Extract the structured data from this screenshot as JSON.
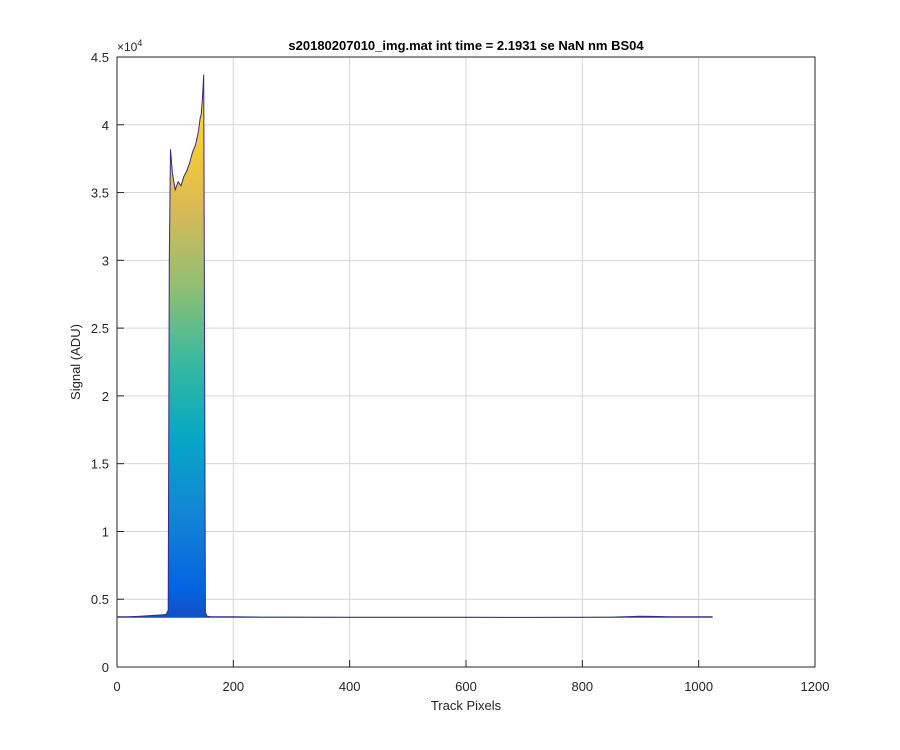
{
  "chart_data": {
    "type": "area",
    "title": "s20180207010_img.mat int time = 2.1931 se  NaN nm BS04",
    "xlabel": "Track Pixels",
    "ylabel": "Signal (ADU)",
    "xlim": [
      0,
      1200
    ],
    "ylim": [
      0,
      45000
    ],
    "exponent_label": "×10",
    "exponent_power": "4",
    "x_ticks": [
      0,
      200,
      400,
      600,
      800,
      1000,
      1200
    ],
    "x_tick_labels": [
      "0",
      "200",
      "400",
      "600",
      "800",
      "1000",
      "1200"
    ],
    "y_ticks": [
      0,
      5000,
      10000,
      15000,
      20000,
      25000,
      30000,
      35000,
      40000,
      45000
    ],
    "y_tick_labels": [
      "0",
      "0.5",
      "1",
      "1.5",
      "2",
      "2.5",
      "3",
      "3.5",
      "4",
      "4.5"
    ],
    "grid": true,
    "colormap": [
      "#352a87",
      "#0363e1",
      "#1485d4",
      "#06a7c6",
      "#38b99e",
      "#92bf73",
      "#d9ba56",
      "#fcce2e",
      "#f9fb0e"
    ],
    "series": [
      {
        "color": "#352a87",
        "x": [
          1,
          20,
          40,
          60,
          80,
          85,
          88,
          90,
          92,
          95,
          100,
          105,
          110,
          115,
          120,
          125,
          130,
          135,
          140,
          143,
          145,
          147,
          149,
          150,
          152,
          155,
          160,
          180,
          200,
          250,
          300,
          400,
          500,
          600,
          700,
          800,
          850,
          880,
          900,
          920,
          950,
          1000,
          1024
        ],
        "y": [
          3700,
          3700,
          3750,
          3800,
          3850,
          3900,
          4200,
          30000,
          38200,
          36500,
          35200,
          35800,
          35500,
          36200,
          36600,
          37200,
          38000,
          38500,
          39500,
          40500,
          40800,
          42000,
          43700,
          30000,
          4000,
          3750,
          3720,
          3700,
          3700,
          3680,
          3680,
          3670,
          3670,
          3670,
          3660,
          3670,
          3680,
          3720,
          3750,
          3730,
          3700,
          3700,
          3700
        ]
      }
    ]
  }
}
